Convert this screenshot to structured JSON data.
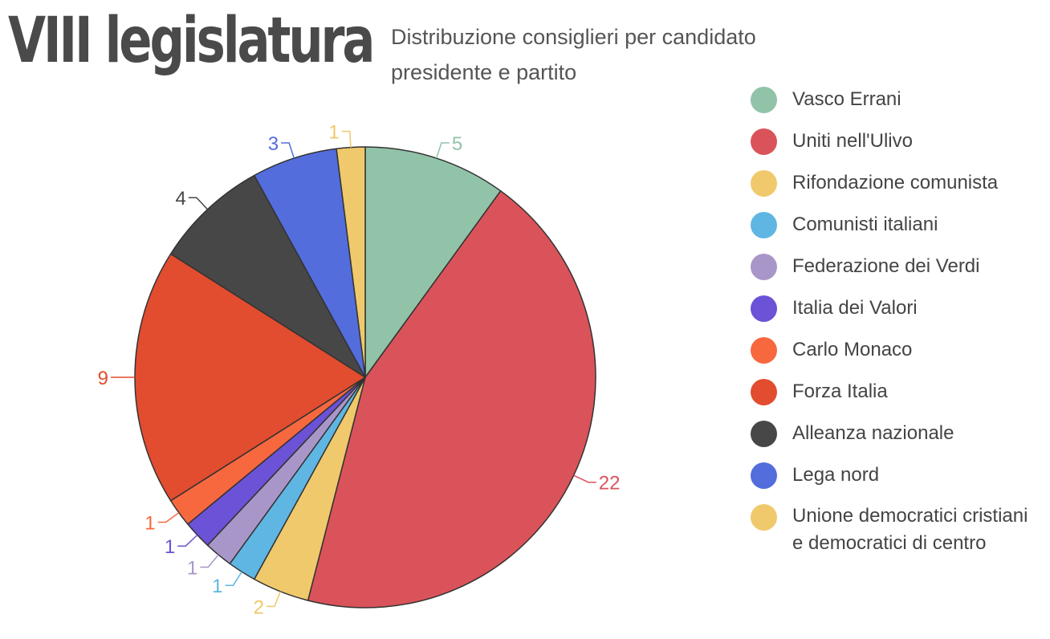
{
  "header": {
    "title": "VIII legislatura",
    "subtitle": "Distribuzione consiglieri per candidato presidente e partito"
  },
  "chart_data": {
    "type": "pie",
    "title": "VIII legislatura",
    "subtitle": "Distribuzione consiglieri per candidato presidente e partito",
    "legend_position": "right",
    "start_angle": "top",
    "direction": "clockwise",
    "slices": [
      {
        "label": "Vasco Errani",
        "value": 5,
        "color": "#91c3a8"
      },
      {
        "label": "Uniti nell'Ulivo",
        "value": 22,
        "color": "#db535a"
      },
      {
        "label": "Rifondazione comunista",
        "value": 2,
        "color": "#efc96b"
      },
      {
        "label": "Comunisti italiani",
        "value": 1,
        "color": "#5fb6e2"
      },
      {
        "label": "Federazione dei Verdi",
        "value": 1,
        "color": "#a996c9"
      },
      {
        "label": "Italia dei Valori",
        "value": 1,
        "color": "#6b52d7"
      },
      {
        "label": "Carlo Monaco",
        "value": 1,
        "color": "#f8683f"
      },
      {
        "label": "Forza Italia",
        "value": 9,
        "color": "#e24c2f"
      },
      {
        "label": "Alleanza nazionale",
        "value": 4,
        "color": "#474747"
      },
      {
        "label": "Lega nord",
        "value": 3,
        "color": "#536ddc"
      },
      {
        "label": "Unione democratici cristiani\ne democratici di centro",
        "value": 1,
        "color": "#efc96b"
      }
    ]
  }
}
